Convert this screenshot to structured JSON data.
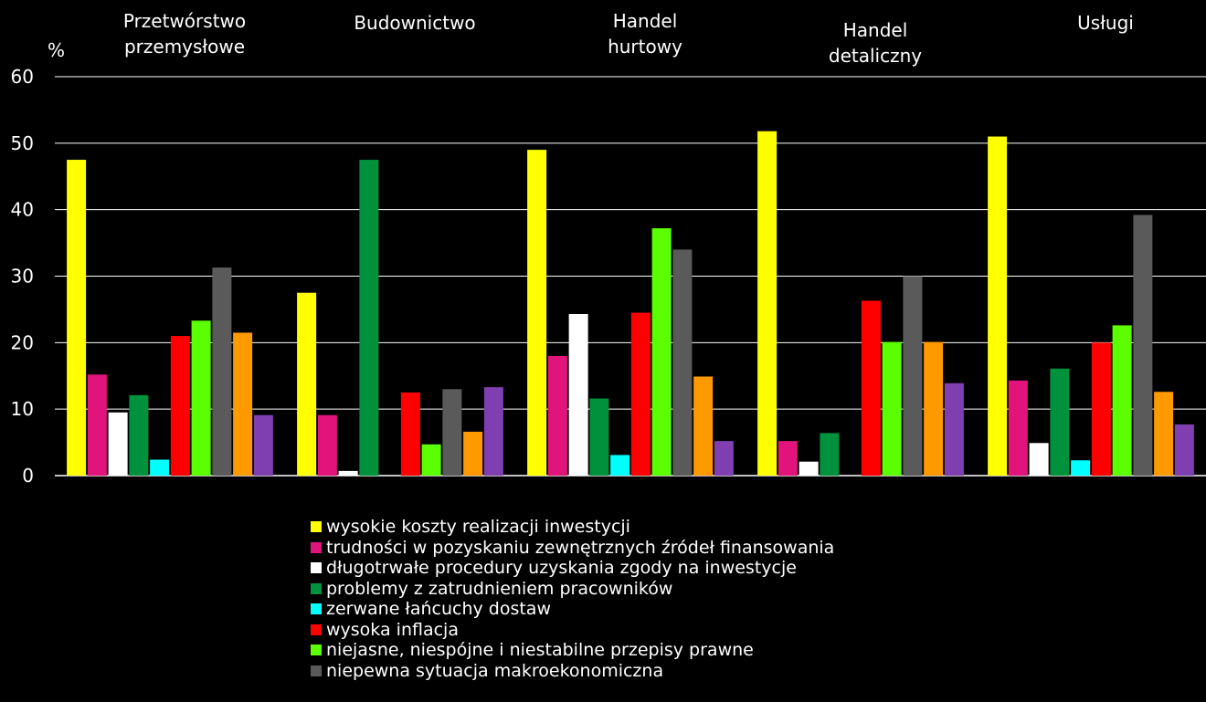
{
  "chart_data": {
    "type": "bar",
    "ylabel": "%",
    "ylim": [
      0,
      60
    ],
    "yticks": [
      0,
      10,
      20,
      30,
      40,
      50,
      60
    ],
    "grid": true,
    "legend_position": "bottom",
    "categories": [
      [
        "Przetwórstwo",
        "przemysłowe"
      ],
      [
        "Budownictwo"
      ],
      [
        "Handel",
        "hurtowy"
      ],
      [
        "Handel",
        "detaliczny"
      ],
      [
        "Usługi"
      ]
    ],
    "series": [
      {
        "name": "wysokie koszty realizacji inwestycji",
        "color": "#ffff00",
        "values": [
          47.5,
          27.5,
          49.0,
          51.8,
          51.0
        ]
      },
      {
        "name": "trudności w pozyskaniu zewnętrznych źródeł finansowania",
        "color": "#e0147a",
        "values": [
          15.2,
          9.1,
          18.0,
          5.2,
          14.3
        ]
      },
      {
        "name": "długotrwałe procedury uzyskania zgody na inwestycje",
        "color": "#ffffff",
        "values": [
          9.5,
          0.7,
          24.3,
          2.1,
          4.9
        ]
      },
      {
        "name": "problemy z zatrudnieniem pracowników",
        "color": "#00913c",
        "values": [
          12.1,
          47.5,
          11.6,
          6.4,
          16.1
        ]
      },
      {
        "name": "zerwane łańcuchy dostaw",
        "color": "#00ffff",
        "values": [
          2.4,
          0,
          3.1,
          0,
          2.3
        ]
      },
      {
        "name": "wysoka inflacja",
        "color": "#ff0000",
        "values": [
          21.0,
          12.5,
          24.5,
          26.3,
          20.0
        ]
      },
      {
        "name": "niejasne, niespójne i niestabilne przepisy prawne",
        "color": "#5cff00",
        "values": [
          23.3,
          4.7,
          37.2,
          20.1,
          22.6
        ]
      },
      {
        "name": "niepewna sytuacja makroekonomiczna",
        "color": "#5a5a5a",
        "values": [
          31.3,
          13.0,
          34.0,
          30.0,
          39.2
        ]
      },
      {
        "name": "",
        "color": "#ff9900",
        "values": [
          21.5,
          6.6,
          14.9,
          20.1,
          12.6
        ]
      },
      {
        "name": "",
        "color": "#7f3fb0",
        "values": [
          9.1,
          13.3,
          5.2,
          13.9,
          7.7
        ]
      }
    ]
  }
}
